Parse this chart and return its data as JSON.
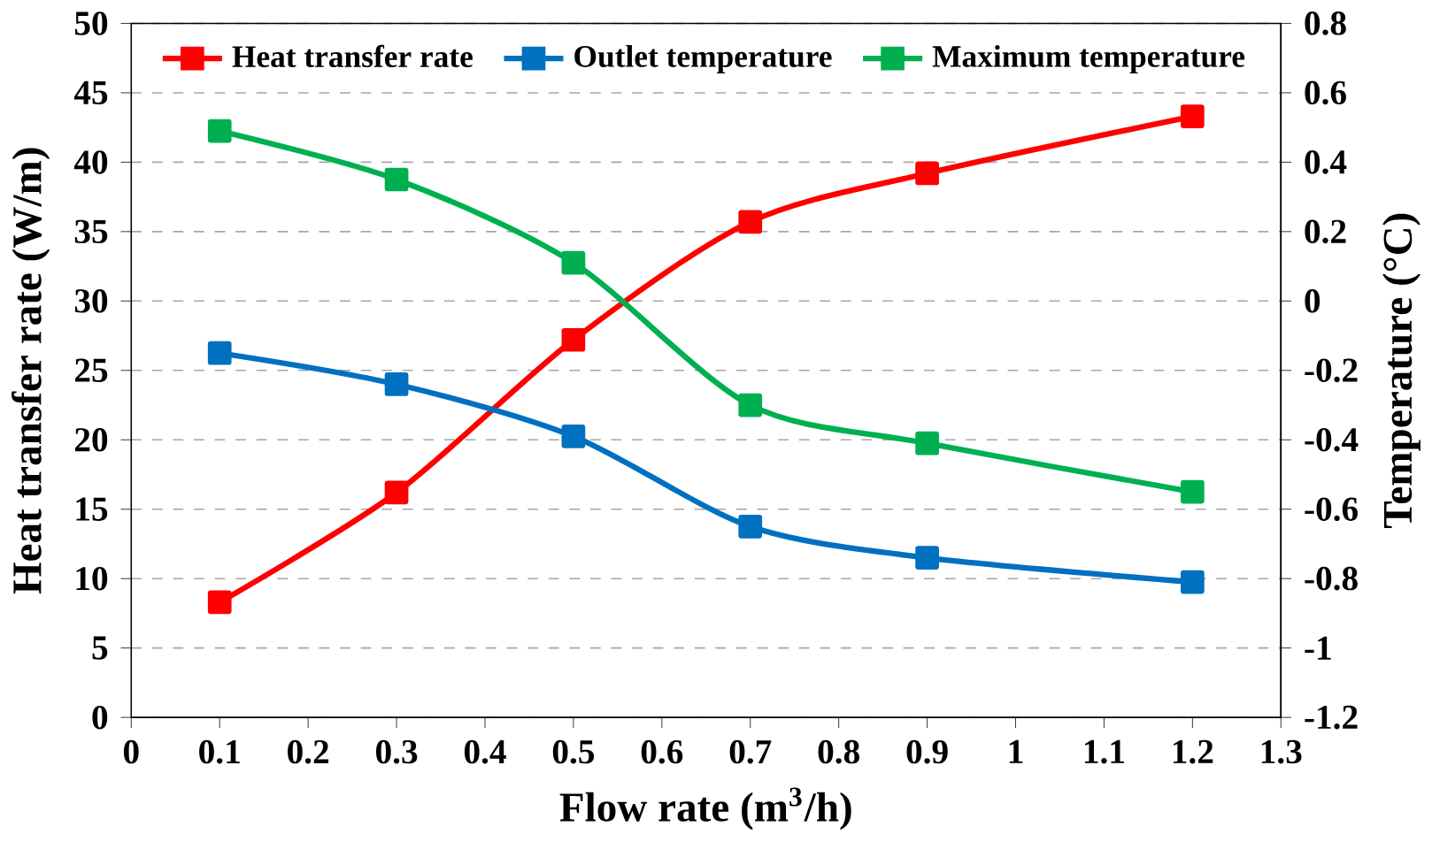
{
  "chart_data": {
    "type": "line",
    "xlabel": "Flow rate (m$^{3}$/h)",
    "ylabel": "Heat transfer rate (W/m)",
    "y2label": "Temperature (°C)",
    "x": [
      0.1,
      0.3,
      0.5,
      0.7,
      0.9,
      1.2
    ],
    "series": [
      {
        "name": "Heat transfer rate",
        "color": "#ff0000",
        "values": [
          8.3,
          16.2,
          27.2,
          35.7,
          39.2,
          43.3
        ]
      },
      {
        "name": "Outlet temperature",
        "color": "#0070c0",
        "axis": "y2",
        "values": [
          -0.15,
          -0.24,
          -0.39,
          -0.65,
          -0.74,
          -0.81
        ]
      },
      {
        "name": "Maximum temperature",
        "color": "#00b050",
        "axis": "y2",
        "values": [
          0.49,
          0.35,
          0.11,
          -0.3,
          -0.41,
          -0.55
        ]
      }
    ],
    "xlim": [
      0,
      1.3
    ],
    "xticks": [
      0,
      0.1,
      0.2,
      0.3,
      0.4,
      0.5,
      0.6,
      0.7,
      0.8,
      0.9,
      1,
      1.1,
      1.2,
      1.3
    ],
    "ylim": [
      0,
      50
    ],
    "yticks": [
      0,
      5,
      10,
      15,
      20,
      25,
      30,
      35,
      40,
      45,
      50
    ],
    "y2lim": [
      -1.2,
      0.8
    ],
    "y2ticks": [
      -1.2,
      -1,
      -0.8,
      -0.6,
      -0.4,
      -0.2,
      0,
      0.2,
      0.4,
      0.6,
      0.8
    ],
    "grid": "y",
    "legend": "top",
    "marker": "square",
    "line_style": "solid"
  }
}
